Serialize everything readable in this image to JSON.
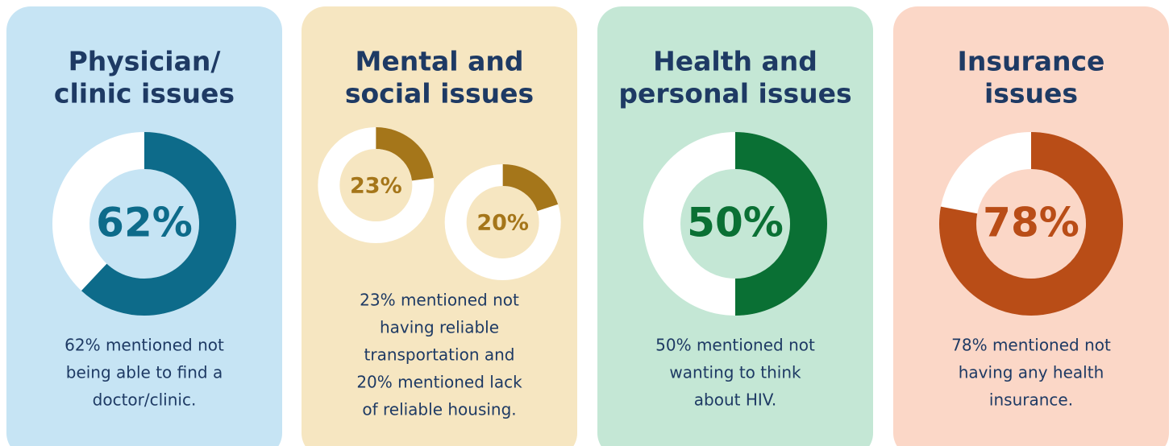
{
  "panels": [
    {
      "title": [
        "Physician/",
        "clinic issues"
      ],
      "background": "#c6e4f4",
      "donuts": [
        {
          "value": 62,
          "value_label": "62%",
          "color": "#0d6b8a"
        }
      ],
      "description": [
        "62% mentioned not",
        "being able to find a",
        "doctor/clinic."
      ]
    },
    {
      "title": [
        "Mental and",
        "social issues"
      ],
      "background": "#f6e6c1",
      "donuts": [
        {
          "value": 23,
          "value_label": "23%",
          "color": "#a5761a"
        },
        {
          "value": 20,
          "value_label": "20%",
          "color": "#a5761a"
        }
      ],
      "description": [
        "23% mentioned not",
        "having reliable",
        "transportation and",
        "20% mentioned lack",
        "of reliable housing."
      ]
    },
    {
      "title": [
        "Health and",
        "personal issues"
      ],
      "background": "#c4e7d5",
      "donuts": [
        {
          "value": 50,
          "value_label": "50%",
          "color": "#0a7034"
        }
      ],
      "description": [
        "50% mentioned not",
        "wanting to think",
        "about HIV."
      ]
    },
    {
      "title": [
        "Insurance",
        "issues"
      ],
      "background": "#fbd7c7",
      "donuts": [
        {
          "value": 78,
          "value_label": "78%",
          "color": "#b94d17"
        }
      ],
      "description": [
        "78% mentioned not",
        "having any health",
        "insurance."
      ]
    }
  ]
}
